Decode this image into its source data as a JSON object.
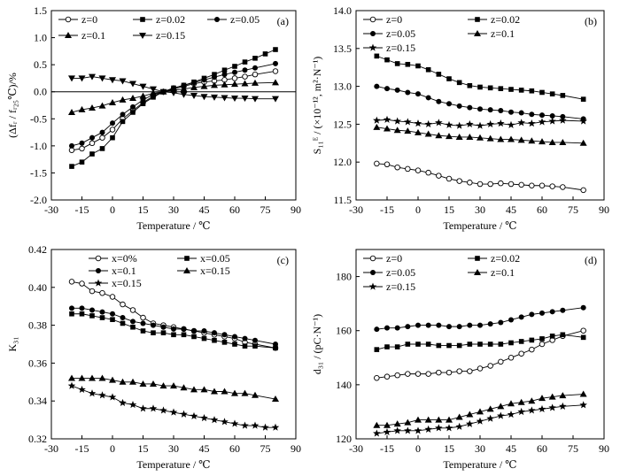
{
  "chart_data": [
    {
      "id": "a",
      "panel_label": "(a)",
      "type": "line",
      "xlabel": "Temperature / ℃",
      "ylabel": "(Δfᵣ / fᵣ₂₅℃)/%",
      "xlim": [
        -30,
        90
      ],
      "ylim": [
        -2.0,
        1.5
      ],
      "xticks": [
        -30,
        -15,
        0,
        15,
        30,
        45,
        60,
        75,
        90
      ],
      "yticks": [
        -2.0,
        -1.5,
        -1.0,
        -0.5,
        0.0,
        0.5,
        1.0,
        1.5
      ],
      "ytick_decimals": 1,
      "grid": false,
      "zero_line": true,
      "legend_cols": 3,
      "legend": [
        "z=0",
        "z=0.02",
        "z=0.05",
        "z=0.1",
        "z=0.15"
      ],
      "series": [
        {
          "name": "z=0",
          "marker": "circle-open",
          "x": [
            -20,
            -15,
            -10,
            -5,
            0,
            5,
            10,
            15,
            20,
            25,
            30,
            35,
            40,
            45,
            50,
            55,
            60,
            65,
            70,
            80
          ],
          "y": [
            -1.08,
            -1.05,
            -0.95,
            -0.85,
            -0.7,
            -0.5,
            -0.35,
            -0.2,
            -0.08,
            0.0,
            0.05,
            0.1,
            0.15,
            0.18,
            0.2,
            0.22,
            0.25,
            0.28,
            0.32,
            0.38
          ]
        },
        {
          "name": "z=0.02",
          "marker": "square",
          "x": [
            -20,
            -15,
            -10,
            -5,
            0,
            5,
            10,
            15,
            20,
            25,
            30,
            35,
            40,
            45,
            50,
            55,
            60,
            65,
            70,
            75,
            80
          ],
          "y": [
            -1.38,
            -1.3,
            -1.15,
            -1.05,
            -0.85,
            -0.55,
            -0.38,
            -0.22,
            -0.1,
            0.0,
            0.07,
            0.12,
            0.18,
            0.25,
            0.32,
            0.4,
            0.47,
            0.55,
            0.62,
            0.7,
            0.78
          ]
        },
        {
          "name": "z=0.05",
          "marker": "circle",
          "x": [
            -20,
            -15,
            -10,
            -5,
            0,
            5,
            10,
            15,
            20,
            25,
            30,
            35,
            40,
            45,
            50,
            55,
            60,
            65,
            70,
            80
          ],
          "y": [
            -1.0,
            -0.95,
            -0.85,
            -0.75,
            -0.58,
            -0.42,
            -0.28,
            -0.15,
            -0.05,
            0.0,
            0.07,
            0.12,
            0.17,
            0.22,
            0.27,
            0.32,
            0.36,
            0.4,
            0.44,
            0.52
          ]
        },
        {
          "name": "z=0.1",
          "marker": "triangle",
          "x": [
            -20,
            -15,
            -10,
            -5,
            0,
            5,
            10,
            15,
            20,
            25,
            30,
            35,
            40,
            45,
            50,
            55,
            60,
            65,
            70,
            80
          ],
          "y": [
            -0.38,
            -0.33,
            -0.3,
            -0.26,
            -0.2,
            -0.15,
            -0.12,
            -0.08,
            -0.03,
            0.0,
            0.03,
            0.05,
            0.08,
            0.1,
            0.12,
            0.13,
            0.14,
            0.15,
            0.16,
            0.17
          ]
        },
        {
          "name": "z=0.15",
          "marker": "triangle-down",
          "x": [
            -20,
            -15,
            -10,
            -5,
            0,
            5,
            10,
            15,
            20,
            25,
            30,
            35,
            40,
            45,
            50,
            55,
            60,
            65,
            70,
            80
          ],
          "y": [
            0.25,
            0.25,
            0.28,
            0.25,
            0.22,
            0.2,
            0.15,
            0.1,
            0.05,
            0.0,
            -0.02,
            -0.05,
            -0.07,
            -0.09,
            -0.1,
            -0.11,
            -0.12,
            -0.12,
            -0.13,
            -0.13
          ]
        }
      ]
    },
    {
      "id": "b",
      "panel_label": "(b)",
      "type": "line",
      "xlabel": "Temperature / ℃",
      "ylabel": "S₁₁ᴱ / (×10⁻¹², m²·N⁻¹)",
      "xlim": [
        -30,
        90
      ],
      "ylim": [
        11.5,
        14.0
      ],
      "xticks": [
        -30,
        -15,
        0,
        15,
        30,
        45,
        60,
        75,
        90
      ],
      "yticks": [
        11.5,
        12.0,
        12.5,
        13.0,
        13.5,
        14.0
      ],
      "ytick_decimals": 1,
      "grid": false,
      "zero_line": false,
      "legend_cols": 2,
      "legend": [
        "z=0",
        "z=0.02",
        "z=0.05",
        "z=0.1",
        "z=0.15"
      ],
      "series": [
        {
          "name": "z=0",
          "marker": "circle-open",
          "x": [
            -20,
            -15,
            -10,
            -5,
            0,
            5,
            10,
            15,
            20,
            25,
            30,
            35,
            40,
            45,
            50,
            55,
            60,
            65,
            70,
            80
          ],
          "y": [
            11.98,
            11.97,
            11.93,
            11.91,
            11.89,
            11.86,
            11.82,
            11.78,
            11.75,
            11.73,
            11.71,
            11.71,
            11.72,
            11.71,
            11.7,
            11.69,
            11.69,
            11.68,
            11.67,
            11.63
          ]
        },
        {
          "name": "z=0.02",
          "marker": "square",
          "x": [
            -20,
            -15,
            -10,
            -5,
            0,
            5,
            10,
            15,
            20,
            25,
            30,
            35,
            40,
            45,
            50,
            55,
            60,
            65,
            70,
            80
          ],
          "y": [
            13.4,
            13.35,
            13.3,
            13.29,
            13.27,
            13.22,
            13.16,
            13.1,
            13.05,
            13.01,
            12.99,
            12.98,
            12.97,
            12.96,
            12.95,
            12.94,
            12.92,
            12.9,
            12.88,
            12.83
          ]
        },
        {
          "name": "z=0.05",
          "marker": "circle",
          "x": [
            -20,
            -15,
            -10,
            -5,
            0,
            5,
            10,
            15,
            20,
            25,
            30,
            35,
            40,
            45,
            50,
            55,
            60,
            65,
            70,
            80
          ],
          "y": [
            13.0,
            12.97,
            12.95,
            12.92,
            12.9,
            12.85,
            12.8,
            12.77,
            12.74,
            12.72,
            12.7,
            12.69,
            12.68,
            12.66,
            12.65,
            12.63,
            12.62,
            12.61,
            12.6,
            12.57
          ]
        },
        {
          "name": "z=0.1",
          "marker": "triangle",
          "x": [
            -20,
            -15,
            -10,
            -5,
            0,
            5,
            10,
            15,
            20,
            25,
            30,
            35,
            40,
            45,
            50,
            55,
            60,
            65,
            70,
            80
          ],
          "y": [
            12.46,
            12.44,
            12.42,
            12.41,
            12.39,
            12.37,
            12.35,
            12.34,
            12.33,
            12.33,
            12.32,
            12.31,
            12.3,
            12.3,
            12.29,
            12.28,
            12.27,
            12.26,
            12.26,
            12.25
          ]
        },
        {
          "name": "z=0.15",
          "marker": "star",
          "x": [
            -20,
            -15,
            -10,
            -5,
            0,
            5,
            10,
            15,
            20,
            25,
            30,
            35,
            40,
            45,
            50,
            55,
            60,
            65,
            70,
            80
          ],
          "y": [
            12.55,
            12.56,
            12.54,
            12.53,
            12.51,
            12.5,
            12.52,
            12.49,
            12.48,
            12.5,
            12.48,
            12.5,
            12.51,
            12.49,
            12.52,
            12.51,
            12.53,
            12.54,
            12.55,
            12.54
          ]
        }
      ]
    },
    {
      "id": "c",
      "panel_label": "(c)",
      "type": "line",
      "xlabel": "Temperature / ℃",
      "ylabel": "K₃₁",
      "xlim": [
        -30,
        90
      ],
      "ylim": [
        0.32,
        0.42
      ],
      "xticks": [
        -30,
        -15,
        0,
        15,
        30,
        45,
        60,
        75,
        90
      ],
      "yticks": [
        0.32,
        0.34,
        0.36,
        0.38,
        0.4,
        0.42
      ],
      "ytick_decimals": 2,
      "grid": false,
      "zero_line": false,
      "legend_cols": 2,
      "legend": [
        "x=0%",
        "x=0.05",
        "x=0.1",
        "x=0.15",
        "x=0.15"
      ],
      "series": [
        {
          "name": "x=0%",
          "marker": "circle-open",
          "x": [
            -20,
            -15,
            -10,
            -5,
            0,
            5,
            10,
            15,
            20,
            25,
            30,
            35,
            40,
            45,
            50,
            55,
            60,
            65,
            70,
            80
          ],
          "y": [
            0.403,
            0.402,
            0.398,
            0.397,
            0.395,
            0.391,
            0.388,
            0.384,
            0.381,
            0.38,
            0.379,
            0.378,
            0.377,
            0.376,
            0.375,
            0.374,
            0.373,
            0.371,
            0.37,
            0.368
          ]
        },
        {
          "name": "x=0.05",
          "marker": "square",
          "x": [
            -20,
            -15,
            -10,
            -5,
            0,
            5,
            10,
            15,
            20,
            25,
            30,
            35,
            40,
            45,
            50,
            55,
            60,
            65,
            70,
            80
          ],
          "y": [
            0.386,
            0.386,
            0.385,
            0.384,
            0.383,
            0.381,
            0.379,
            0.377,
            0.376,
            0.376,
            0.375,
            0.375,
            0.374,
            0.373,
            0.372,
            0.371,
            0.37,
            0.369,
            0.369,
            0.368
          ]
        },
        {
          "name": "x=0.1",
          "marker": "circle",
          "x": [
            -20,
            -15,
            -10,
            -5,
            0,
            5,
            10,
            15,
            20,
            25,
            30,
            35,
            40,
            45,
            50,
            55,
            60,
            65,
            70,
            80
          ],
          "y": [
            0.389,
            0.389,
            0.388,
            0.387,
            0.386,
            0.384,
            0.382,
            0.381,
            0.38,
            0.379,
            0.378,
            0.378,
            0.377,
            0.377,
            0.376,
            0.375,
            0.374,
            0.373,
            0.372,
            0.37
          ]
        },
        {
          "name": "x=0.15",
          "marker": "triangle",
          "x": [
            -20,
            -15,
            -10,
            -5,
            0,
            5,
            10,
            15,
            20,
            25,
            30,
            35,
            40,
            45,
            50,
            55,
            60,
            65,
            70,
            80
          ],
          "y": [
            0.352,
            0.352,
            0.352,
            0.352,
            0.351,
            0.35,
            0.35,
            0.349,
            0.349,
            0.348,
            0.348,
            0.347,
            0.346,
            0.346,
            0.345,
            0.345,
            0.344,
            0.344,
            0.343,
            0.341
          ]
        },
        {
          "name": "x=0.15",
          "marker": "star",
          "x": [
            -20,
            -15,
            -10,
            -5,
            0,
            5,
            10,
            15,
            20,
            25,
            30,
            35,
            40,
            45,
            50,
            55,
            60,
            65,
            70,
            75,
            80
          ],
          "y": [
            0.348,
            0.346,
            0.344,
            0.343,
            0.342,
            0.339,
            0.338,
            0.336,
            0.336,
            0.335,
            0.334,
            0.333,
            0.332,
            0.331,
            0.33,
            0.329,
            0.328,
            0.327,
            0.327,
            0.326,
            0.326
          ]
        }
      ]
    },
    {
      "id": "d",
      "panel_label": "(d)",
      "type": "line",
      "xlabel": "Temperature / ℃",
      "ylabel": "d₃₁ / (pC·N⁻¹)",
      "xlim": [
        -30,
        90
      ],
      "ylim": [
        120,
        190
      ],
      "xticks": [
        -30,
        -15,
        0,
        15,
        30,
        45,
        60,
        75,
        90
      ],
      "yticks": [
        120,
        140,
        160,
        180
      ],
      "ytick_decimals": 0,
      "grid": false,
      "zero_line": false,
      "legend_cols": 2,
      "legend": [
        "z=0",
        "z=0.02",
        "z=0.05",
        "z=0.1",
        "z=0.15"
      ],
      "series": [
        {
          "name": "z=0",
          "marker": "circle-open",
          "x": [
            -20,
            -15,
            -10,
            -5,
            0,
            5,
            10,
            15,
            20,
            25,
            30,
            35,
            40,
            45,
            50,
            55,
            60,
            65,
            70,
            80
          ],
          "y": [
            142.5,
            143,
            143.5,
            144,
            144,
            144,
            144.5,
            144.5,
            145,
            145,
            146,
            147,
            148.5,
            150,
            151.5,
            153,
            155,
            156.5,
            158,
            160
          ]
        },
        {
          "name": "z=0.02",
          "marker": "square",
          "x": [
            -20,
            -15,
            -10,
            -5,
            0,
            5,
            10,
            15,
            20,
            25,
            30,
            35,
            40,
            45,
            50,
            55,
            60,
            65,
            70,
            80
          ],
          "y": [
            153,
            154,
            154,
            155,
            155,
            155,
            154.5,
            154.5,
            154.5,
            155,
            155,
            155,
            155,
            155.5,
            156,
            156.5,
            157,
            158,
            158.5,
            157.5
          ]
        },
        {
          "name": "z=0.05",
          "marker": "circle",
          "x": [
            -20,
            -15,
            -10,
            -5,
            0,
            5,
            10,
            15,
            20,
            25,
            30,
            35,
            40,
            45,
            50,
            55,
            60,
            65,
            70,
            80
          ],
          "y": [
            160.5,
            161,
            161,
            161.5,
            162,
            162,
            162,
            161.5,
            161.5,
            162,
            162,
            162.5,
            163,
            164,
            165,
            166,
            166.5,
            167,
            167.5,
            168.5
          ]
        },
        {
          "name": "z=0.1",
          "marker": "triangle",
          "x": [
            -20,
            -15,
            -10,
            -5,
            0,
            5,
            10,
            15,
            20,
            25,
            30,
            35,
            40,
            45,
            50,
            55,
            60,
            65,
            70,
            80
          ],
          "y": [
            125,
            125,
            125.5,
            126,
            127,
            127,
            127,
            127,
            128,
            129,
            130,
            131,
            132,
            133,
            133.5,
            134,
            135,
            135.5,
            136,
            136.5
          ]
        },
        {
          "name": "z=0.15",
          "marker": "star",
          "x": [
            -20,
            -15,
            -10,
            -5,
            0,
            5,
            10,
            15,
            20,
            25,
            30,
            35,
            40,
            45,
            50,
            55,
            60,
            65,
            70,
            80
          ],
          "y": [
            122,
            122.5,
            123,
            123,
            123,
            123.5,
            124,
            124,
            124.5,
            125.5,
            126.5,
            127.5,
            128.5,
            129,
            130,
            130.5,
            131,
            131.5,
            132,
            132.5
          ]
        }
      ]
    }
  ]
}
